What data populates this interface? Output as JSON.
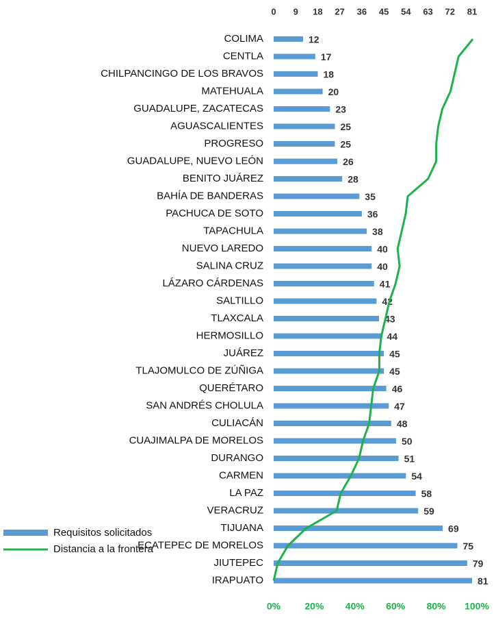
{
  "chart_data": {
    "type": "bar",
    "categories": [
      "COLIMA",
      "CENTLA",
      "CHILPANCINGO DE LOS BRAVOS",
      "MATEHUALA",
      "GUADALUPE, ZACATECAS",
      "AGUASCALIENTES",
      "PROGRESO",
      "GUADALUPE, NUEVO LEÓN",
      "BENITO JUÁREZ",
      "BAHÍA DE BANDERAS",
      "PACHUCA DE SOTO",
      "TAPACHULA",
      "NUEVO LAREDO",
      "SALINA CRUZ",
      "LÁZARO CÁRDENAS",
      "SALTILLO",
      "TLAXCALA",
      "HERMOSILLO",
      "JUÁREZ",
      "TLAJOMULCO DE ZÚÑIGA",
      "QUERÉTARO",
      "SAN ANDRÉS CHOLULA",
      "CULIACÁN",
      "CUAJIMALPA DE MORELOS",
      "DURANGO",
      "CARMEN",
      "LA PAZ",
      "VERACRUZ",
      "TIJUANA",
      "ECATEPEC DE MORELOS",
      "JIUTEPEC",
      "IRAPUATO"
    ],
    "series": [
      {
        "name": "Requisitos solicitados",
        "color": "#5b9bd5",
        "values": [
          12,
          17,
          18,
          20,
          23,
          25,
          25,
          26,
          28,
          35,
          36,
          38,
          40,
          40,
          41,
          42,
          43,
          44,
          45,
          45,
          46,
          47,
          48,
          50,
          51,
          54,
          58,
          59,
          69,
          75,
          79,
          81
        ]
      },
      {
        "name": "Distancia a la frontera",
        "color": "#1db24a",
        "axis": "y2",
        "values": [
          98,
          91,
          89,
          87,
          83,
          81,
          80,
          80,
          76,
          66,
          65,
          63,
          61,
          62,
          60,
          57,
          55,
          53,
          52,
          52,
          49,
          48,
          47,
          44,
          42,
          38,
          33,
          31,
          16,
          7,
          2,
          0
        ]
      }
    ],
    "ylim": [
      0,
      81
    ],
    "yticks": [
      0,
      9,
      18,
      27,
      36,
      45,
      54,
      63,
      72,
      81
    ],
    "y2lim": [
      0,
      100
    ],
    "y2ticks": [
      {
        "value": 0,
        "label": "0%"
      },
      {
        "value": 20,
        "label": "20%"
      },
      {
        "value": 40,
        "label": "40%"
      },
      {
        "value": 60,
        "label": "60%"
      },
      {
        "value": 80,
        "label": "80%"
      },
      {
        "value": 100,
        "label": "100%"
      }
    ]
  }
}
